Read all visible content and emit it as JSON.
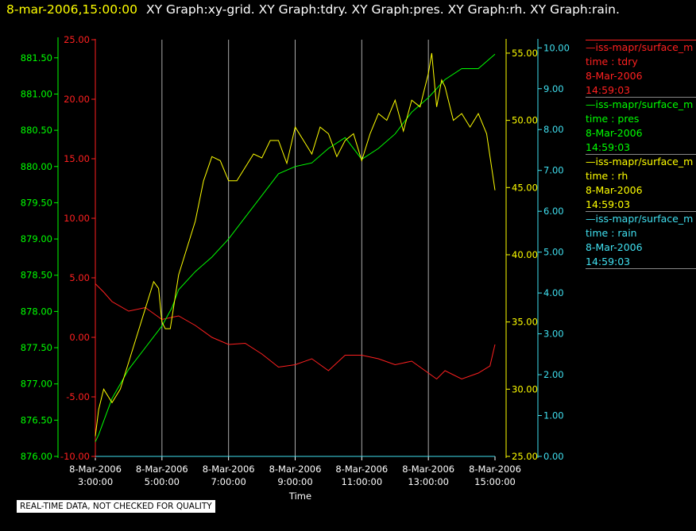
{
  "header": {
    "datetime": "8-mar-2006,15:00:00",
    "titles": "XY Graph:xy-grid.  XY Graph:tdry.  XY Graph:pres.  XY Graph:rh.  XY Graph:rain."
  },
  "legend": [
    {
      "name": "—iss-mapr/surface_m",
      "var": "time : tdry",
      "date": "8-Mar-2006",
      "time": "14:59:03",
      "color": "#ff2020"
    },
    {
      "name": "—iss-mapr/surface_m",
      "var": "time : pres",
      "date": "8-Mar-2006",
      "time": "14:59:03",
      "color": "#00ff00"
    },
    {
      "name": "—iss-mapr/surface_m",
      "var": "time : rh",
      "date": "8-Mar-2006",
      "time": "14:59:03",
      "color": "#ffff00"
    },
    {
      "name": "—iss-mapr/surface_m",
      "var": "time : rain",
      "date": "8-Mar-2006",
      "time": "14:59:03",
      "color": "#40e0f0"
    }
  ],
  "disclaimer": "REAL-TIME DATA, NOT CHECKED FOR QUALITY",
  "chart_data": {
    "type": "line",
    "xlabel": "Time",
    "x_ticks": [
      {
        "date": "8-Mar-2006",
        "time": "3:00:00"
      },
      {
        "date": "8-Mar-2006",
        "time": "5:00:00"
      },
      {
        "date": "8-Mar-2006",
        "time": "7:00:00"
      },
      {
        "date": "8-Mar-2006",
        "time": "9:00:00"
      },
      {
        "date": "8-Mar-2006",
        "time": "11:00:00"
      },
      {
        "date": "8-Mar-2006",
        "time": "13:00:00"
      },
      {
        "date": "8-Mar-2006",
        "time": "15:00:00"
      }
    ],
    "xlim_hours": [
      3,
      15
    ],
    "grid": true,
    "axes": {
      "tdry": {
        "color": "#ff2020",
        "ylim": [
          -10,
          25
        ],
        "ticks": [
          "-10.00",
          "-5.00",
          "0.00",
          "5.00",
          "10.00",
          "15.00",
          "20.00",
          "25.00"
        ]
      },
      "pres": {
        "color": "#00ff00",
        "ylim": [
          876,
          881.75
        ],
        "ticks": [
          "876.00",
          "876.50",
          "877.00",
          "877.50",
          "878.00",
          "878.50",
          "879.00",
          "879.50",
          "880.00",
          "880.50",
          "881.00",
          "881.50"
        ]
      },
      "rh": {
        "color": "#ffff00",
        "ylim": [
          25,
          56
        ],
        "ticks": [
          "25.00",
          "30.00",
          "35.00",
          "40.00",
          "45.00",
          "50.00",
          "55.00"
        ]
      },
      "rain": {
        "color": "#40e0f0",
        "ylim": [
          0,
          10.2
        ],
        "ticks": [
          "0.00",
          "1.00",
          "2.00",
          "3.00",
          "4.00",
          "5.00",
          "6.00",
          "7.00",
          "8.00",
          "9.00",
          "10.00"
        ]
      }
    },
    "series": [
      {
        "name": "tdry",
        "axis": "tdry",
        "color": "#ff2020",
        "x": [
          3.0,
          3.25,
          3.5,
          4.0,
          4.5,
          5.0,
          5.5,
          6.0,
          6.5,
          7.0,
          7.5,
          8.0,
          8.5,
          9.0,
          9.5,
          10.0,
          10.5,
          11.0,
          11.5,
          12.0,
          12.5,
          13.0,
          13.25,
          13.5,
          14.0,
          14.5,
          14.85,
          15.0
        ],
        "y": [
          4.5,
          3.8,
          3.0,
          2.2,
          2.5,
          1.5,
          1.8,
          1.0,
          0.0,
          -0.6,
          -0.5,
          -1.4,
          -2.5,
          -2.3,
          -1.8,
          -2.8,
          -1.5,
          -1.5,
          -1.8,
          -2.3,
          -2.0,
          -3.0,
          -3.5,
          -2.8,
          -3.5,
          -3.0,
          -2.4,
          -0.6
        ]
      },
      {
        "name": "pres",
        "axis": "pres",
        "color": "#00ff00",
        "x": [
          3.0,
          3.1,
          3.5,
          4.0,
          4.5,
          5.0,
          5.3,
          5.5,
          6.0,
          6.5,
          7.0,
          7.5,
          8.0,
          8.5,
          9.0,
          9.5,
          10.0,
          10.5,
          11.0,
          11.5,
          12.0,
          12.5,
          13.0,
          13.5,
          14.0,
          14.5,
          15.0
        ],
        "y": [
          876.2,
          876.3,
          876.8,
          877.2,
          877.5,
          877.8,
          878.05,
          878.3,
          878.55,
          878.75,
          879.0,
          879.3,
          879.6,
          879.9,
          880.0,
          880.05,
          880.25,
          880.4,
          880.1,
          880.25,
          880.45,
          880.75,
          880.95,
          881.2,
          881.35,
          881.35,
          881.55
        ]
      },
      {
        "name": "rh",
        "axis": "rh",
        "color": "#ffff00",
        "x": [
          3.0,
          3.1,
          3.25,
          3.5,
          3.75,
          4.0,
          4.25,
          4.5,
          4.75,
          4.9,
          5.0,
          5.1,
          5.25,
          5.5,
          5.75,
          6.0,
          6.25,
          6.5,
          6.75,
          7.0,
          7.25,
          7.5,
          7.75,
          8.0,
          8.25,
          8.5,
          8.75,
          9.0,
          9.25,
          9.5,
          9.75,
          10.0,
          10.25,
          10.5,
          10.75,
          11.0,
          11.25,
          11.5,
          11.75,
          12.0,
          12.25,
          12.5,
          12.75,
          13.0,
          13.1,
          13.25,
          13.4,
          13.5,
          13.75,
          14.0,
          14.25,
          14.5,
          14.75,
          15.0
        ],
        "y": [
          26.5,
          28.5,
          30,
          29,
          30,
          32,
          34,
          36,
          38,
          37.5,
          35,
          34.5,
          34.5,
          38.5,
          40.5,
          42.5,
          45.5,
          47.3,
          47.0,
          45.5,
          45.5,
          46.5,
          47.5,
          47.2,
          48.5,
          48.5,
          46.8,
          49.5,
          48.5,
          47.5,
          49.5,
          49.0,
          47.3,
          48.5,
          49.0,
          47.0,
          49.0,
          50.5,
          50.0,
          51.5,
          49.2,
          51.5,
          51.0,
          53.5,
          55.0,
          51.0,
          53.0,
          52.5,
          50.0,
          50.5,
          49.5,
          50.5,
          49.0,
          44.8
        ]
      },
      {
        "name": "rain",
        "axis": "rain",
        "color": "#40e0f0",
        "x": [
          3.0,
          15.0
        ],
        "y": [
          0.0,
          0.0
        ]
      }
    ]
  }
}
